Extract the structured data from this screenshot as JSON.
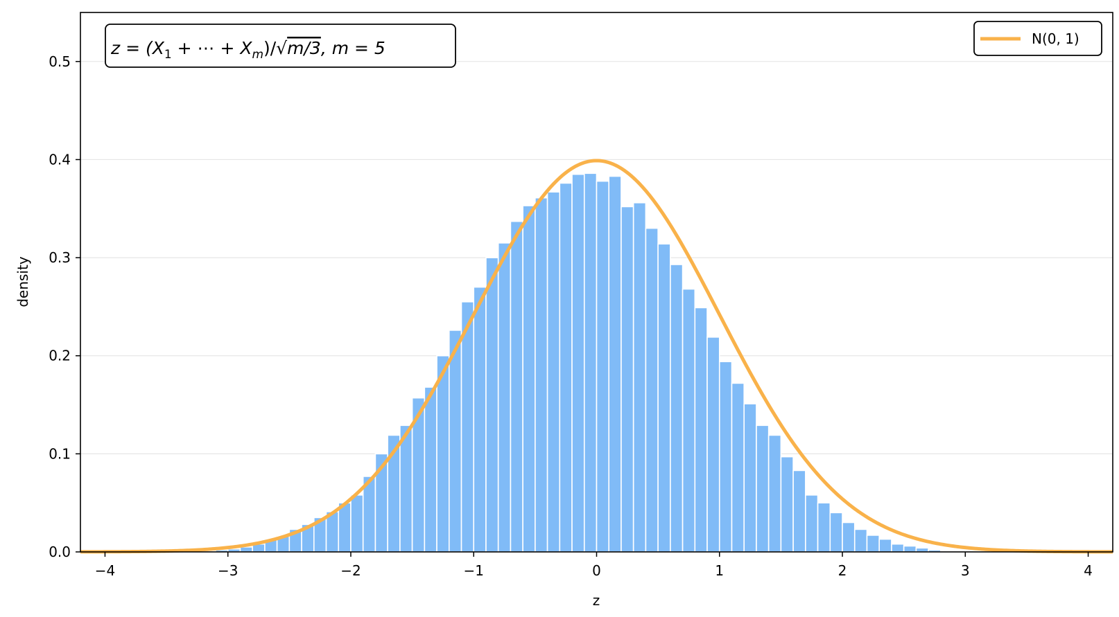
{
  "chart_data": {
    "type": "bar",
    "title": "",
    "annotation": {
      "lead": "z = (X",
      "sub1": "1",
      "mid": " + ⋯ + X",
      "sub2": "m",
      "tail": ")/√",
      "radicand": "m/3",
      "m_label": ", m = 5"
    },
    "xlabel": "z",
    "ylabel": "density",
    "xlim": [
      -4.2,
      4.2
    ],
    "ylim": [
      0,
      0.55
    ],
    "xticks": [
      -4,
      -3,
      -2,
      -1,
      0,
      1,
      2,
      3,
      4
    ],
    "xtick_labels": [
      "−4",
      "−3",
      "−2",
      "−1",
      "0",
      "1",
      "2",
      "3",
      "4"
    ],
    "yticks": [
      0.0,
      0.1,
      0.2,
      0.3,
      0.4,
      0.5
    ],
    "ytick_labels": [
      "0.0",
      "0.1",
      "0.2",
      "0.3",
      "0.4",
      "0.5"
    ],
    "grid": "horizontal",
    "legend_position": "top-right",
    "series": [
      {
        "kind": "histogram",
        "color": "#80bbf7",
        "bin_width": 0.1,
        "bin_start": -3.2,
        "values": [
          0.001,
          0.002,
          0.003,
          0.005,
          0.008,
          0.013,
          0.016,
          0.023,
          0.028,
          0.035,
          0.041,
          0.05,
          0.058,
          0.077,
          0.1,
          0.119,
          0.129,
          0.157,
          0.168,
          0.2,
          0.226,
          0.255,
          0.27,
          0.3,
          0.315,
          0.337,
          0.353,
          0.361,
          0.367,
          0.376,
          0.385,
          0.386,
          0.378,
          0.383,
          0.352,
          0.356,
          0.33,
          0.314,
          0.293,
          0.268,
          0.249,
          0.219,
          0.194,
          0.172,
          0.151,
          0.129,
          0.119,
          0.097,
          0.083,
          0.058,
          0.05,
          0.04,
          0.03,
          0.023,
          0.017,
          0.013,
          0.008,
          0.006,
          0.004,
          0.002,
          0.001,
          0.001,
          0.001,
          0.0005
        ]
      },
      {
        "kind": "line",
        "name": "N(0, 1)",
        "color": "#f9b24a",
        "function": "standard normal pdf"
      }
    ]
  }
}
